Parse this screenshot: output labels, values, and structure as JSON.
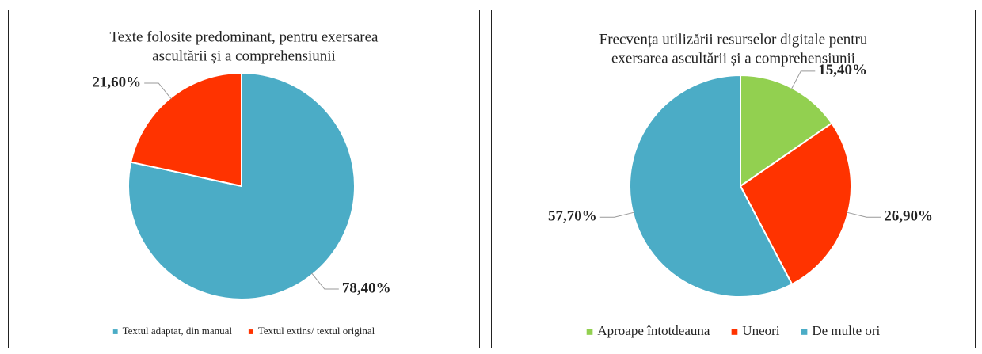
{
  "chart_data": [
    {
      "type": "pie",
      "title": [
        "Texte folosite predominant, pentru exersarea",
        "ascultării și a comprehensiunii"
      ],
      "categories": [
        "Textul adaptat, din manual",
        "Textul extins/ textul original"
      ],
      "values": [
        78.4,
        21.6
      ],
      "value_labels": [
        "78,40%",
        "21,60%"
      ],
      "colors": [
        "#4bacc6",
        "#ff3300"
      ],
      "legend": "bottom"
    },
    {
      "type": "pie",
      "title": [
        "Frecvența utilizării resurselor digitale pentru",
        "exersarea ascultării și a comprehensiunii"
      ],
      "categories": [
        "Aproape întotdeauna",
        "Uneori",
        "De multe ori"
      ],
      "values": [
        15.4,
        26.9,
        57.7
      ],
      "value_labels": [
        "15,40%",
        "26,90%",
        "57,70%"
      ],
      "colors": [
        "#92d050",
        "#ff3300",
        "#4bacc6"
      ],
      "legend": "bottom"
    }
  ]
}
